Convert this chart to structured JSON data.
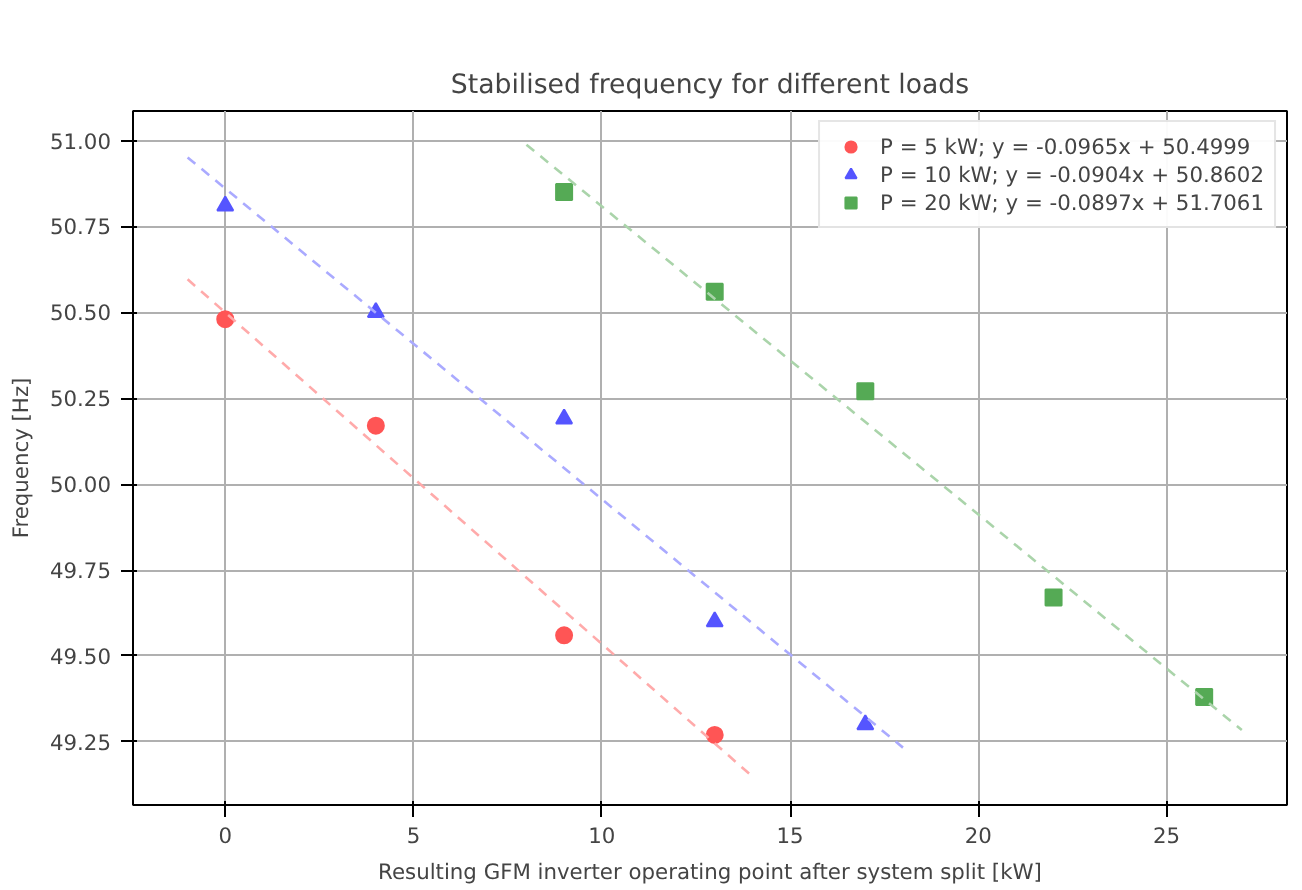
{
  "chart_data": {
    "type": "scatter",
    "title": "Stabilised frequency for different loads",
    "xlabel": "Resulting GFM inverter operating point after system split [kW]",
    "ylabel": "Frequency [Hz]",
    "xlim": [
      -2.45,
      28.2
    ],
    "ylim": [
      49.066,
      51.086
    ],
    "xticks": [
      0,
      5,
      10,
      15,
      20,
      25
    ],
    "yticks": [
      {
        "value": 49.25,
        "label": "49.25"
      },
      {
        "value": 49.5,
        "label": "49.50"
      },
      {
        "value": 49.75,
        "label": "49.75"
      },
      {
        "value": 50.0,
        "label": "50.00"
      },
      {
        "value": 50.25,
        "label": "50.25"
      },
      {
        "value": 50.5,
        "label": "50.50"
      },
      {
        "value": 50.75,
        "label": "50.75"
      },
      {
        "value": 51.0,
        "label": "51.00"
      }
    ],
    "grid": true,
    "legend": "top right",
    "series": [
      {
        "name": "P = 5 kW; y = -0.0965x + 50.4999",
        "color": "#ff5555",
        "marker": "circle",
        "x": [
          0,
          4,
          9,
          13
        ],
        "values": [
          50.48,
          50.17,
          49.56,
          49.27
        ]
      },
      {
        "name": "P = 10 kW; y = -0.0904x + 50.8602",
        "color": "#5555ff",
        "marker": "triangle",
        "x": [
          0,
          4,
          9,
          13,
          17
        ],
        "values": [
          50.81,
          50.5,
          50.19,
          49.6,
          49.3
        ]
      },
      {
        "name": "P = 20 kW; y = -0.0897x + 51.7061",
        "color": "#55aa55",
        "marker": "square",
        "x": [
          9,
          13,
          17,
          22,
          26
        ],
        "values": [
          50.85,
          50.56,
          50.27,
          49.67,
          49.38
        ]
      },
      {
        "type": "line",
        "color": "#ffaaaa",
        "line_style": "dashed",
        "x": [
          -1,
          14
        ],
        "values": [
          50.596,
          49.149
        ]
      },
      {
        "type": "line",
        "color": "#aaaaff",
        "line_style": "dashed",
        "x": [
          -1,
          18
        ],
        "values": [
          50.951,
          49.233
        ]
      },
      {
        "type": "line",
        "color": "#aad4aa",
        "line_style": "dashed",
        "x": [
          8,
          27
        ],
        "values": [
          50.988,
          49.284
        ]
      }
    ]
  }
}
